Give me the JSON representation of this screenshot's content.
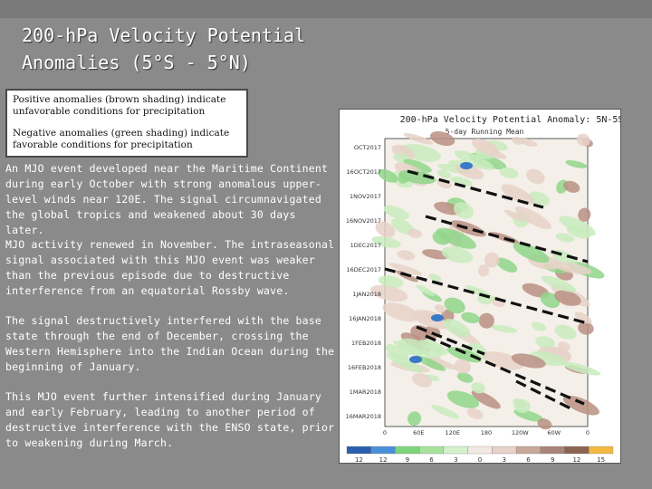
{
  "slide": {
    "title_line1": "200-hPa Velocity Potential",
    "title_line2": "Anomalies (5°S - 5°N)"
  },
  "legend_box": {
    "positive": "Positive anomalies (brown shading) indicate unfavorable conditions for precipitation",
    "negative": "Negative anomalies (green shading) indicate favorable conditions for precipitation"
  },
  "paragraphs": [
    "An MJO event developed near the Maritime Continent during early October with strong anomalous upper-level winds near 120E. The signal circumnavigated the global tropics and weakened about 30 days later.",
    "MJO activity renewed in November. The intraseasonal signal associated with this MJO event was weaker than the previous episode due to destructive interference from an equatorial Rossby wave.",
    "The signal destructively interfered with the base state through the end of December, crossing the Western Hemisphere into the Indian Ocean during the beginning of January.",
    "This MJO event further intensified during January and early February, leading to another period of destructive interference with the ENSO state, prior to weakening during March."
  ],
  "figure": {
    "title": "200-hPa Velocity Potential Anomaly: 5N-5S",
    "subtitle": "5-day Running Mean",
    "date_labels": [
      "OCT2017",
      "16OCT2017",
      "1NOV2017",
      "16NOV2017",
      "1DEC2017",
      "16DEC2017",
      "1JAN2018",
      "16JAN2018",
      "1FEB2018",
      "16FEB2018",
      "1MAR2018",
      "16MAR2018"
    ],
    "lon_labels": [
      "0",
      "60E",
      "120E",
      "180",
      "120W",
      "60W",
      "0"
    ],
    "colorbar_labels": [
      "12",
      "12",
      "9",
      "6",
      "3",
      "0",
      "3",
      "6",
      "9",
      "12",
      "15"
    ],
    "colorbar_colors": [
      "#2a5fb0",
      "#4a90d9",
      "#7fd67a",
      "#a8e39e",
      "#d4f0cc",
      "#f1e9e2",
      "#e6d2c8",
      "#c9a89a",
      "#a9847a",
      "#8c6452",
      "#f5b942"
    ],
    "colors": {
      "green_light": "#c8ebbd",
      "green_mid": "#8fd68a",
      "brown_light": "#e6d2c8",
      "brown_mid": "#b99182",
      "blue": "#3a78c8"
    }
  }
}
